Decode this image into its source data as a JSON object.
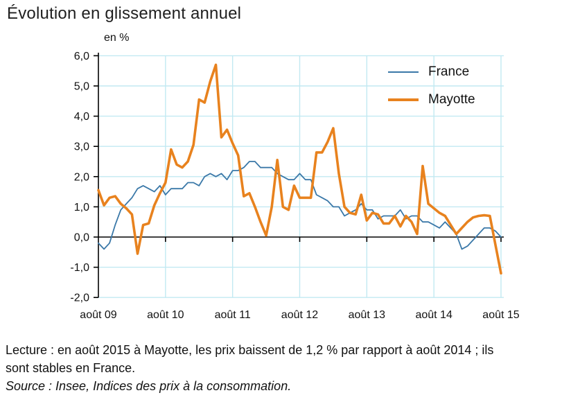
{
  "header": {
    "title": "Évolution en glissement annuel"
  },
  "chart": {
    "unit_label": "en %"
  },
  "legend": {
    "france": {
      "label": "France"
    },
    "mayotte": {
      "label": "Mayotte"
    }
  },
  "colors": {
    "france": "#3A78A8",
    "mayotte": "#E8821E",
    "gridline": "#C2E9F2",
    "axis": "#000000"
  },
  "footer": {
    "lecture_line1": "Lecture : en août 2015 à Mayotte, les prix baissent de 1,2 % par rapport à août 2014 ; ils",
    "lecture_line2": "sont stables en France.",
    "source": "Source : Insee, Indices des prix à la consommation."
  },
  "chart_data": {
    "type": "line",
    "title": "Évolution en glissement annuel",
    "unit": "en %",
    "frequency": "monthly",
    "x_start": "2009-08",
    "x_end": "2015-08",
    "ylim": [
      -2.0,
      6.0
    ],
    "grid": true,
    "legend_position": "top-right",
    "x_tick_labels": [
      "août 09",
      "août 10",
      "août 11",
      "août 12",
      "août 13",
      "août 14",
      "août 15"
    ],
    "y_tick_labels": [
      "6,0",
      "5,0",
      "4,0",
      "3,0",
      "2,0",
      "1,0",
      "0,0",
      "-1,0",
      "-2,0"
    ],
    "y_tick_values": [
      6,
      5,
      4,
      3,
      2,
      1,
      0,
      -1,
      -2
    ],
    "months": [
      "2009-08",
      "2009-09",
      "2009-10",
      "2009-11",
      "2009-12",
      "2010-01",
      "2010-02",
      "2010-03",
      "2010-04",
      "2010-05",
      "2010-06",
      "2010-07",
      "2010-08",
      "2010-09",
      "2010-10",
      "2010-11",
      "2010-12",
      "2011-01",
      "2011-02",
      "2011-03",
      "2011-04",
      "2011-05",
      "2011-06",
      "2011-07",
      "2011-08",
      "2011-09",
      "2011-10",
      "2011-11",
      "2011-12",
      "2012-01",
      "2012-02",
      "2012-03",
      "2012-04",
      "2012-05",
      "2012-06",
      "2012-07",
      "2012-08",
      "2012-09",
      "2012-10",
      "2012-11",
      "2012-12",
      "2013-01",
      "2013-02",
      "2013-03",
      "2013-04",
      "2013-05",
      "2013-06",
      "2013-07",
      "2013-08",
      "2013-09",
      "2013-10",
      "2013-11",
      "2013-12",
      "2014-01",
      "2014-02",
      "2014-03",
      "2014-04",
      "2014-05",
      "2014-06",
      "2014-07",
      "2014-08",
      "2014-09",
      "2014-10",
      "2014-11",
      "2014-12",
      "2015-01",
      "2015-02",
      "2015-03",
      "2015-04",
      "2015-05",
      "2015-06",
      "2015-07",
      "2015-08"
    ],
    "series": [
      {
        "name": "France",
        "color": "#3A78A8",
        "values": [
          -0.2,
          -0.4,
          -0.2,
          0.4,
          0.9,
          1.1,
          1.3,
          1.6,
          1.7,
          1.6,
          1.5,
          1.7,
          1.4,
          1.6,
          1.6,
          1.6,
          1.8,
          1.8,
          1.7,
          2.0,
          2.1,
          2.0,
          2.1,
          1.9,
          2.2,
          2.2,
          2.3,
          2.5,
          2.5,
          2.3,
          2.3,
          2.3,
          2.1,
          2.0,
          1.9,
          1.9,
          2.1,
          1.9,
          1.9,
          1.4,
          1.3,
          1.2,
          1.0,
          1.0,
          0.7,
          0.8,
          0.9,
          1.1,
          0.9,
          0.9,
          0.6,
          0.7,
          0.7,
          0.7,
          0.9,
          0.6,
          0.7,
          0.7,
          0.5,
          0.5,
          0.4,
          0.3,
          0.5,
          0.3,
          0.1,
          -0.4,
          -0.3,
          -0.1,
          0.1,
          0.3,
          0.3,
          0.2,
          0.0
        ]
      },
      {
        "name": "Mayotte",
        "color": "#E8821E",
        "values": [
          1.55,
          1.05,
          1.3,
          1.35,
          1.1,
          0.95,
          0.75,
          -0.55,
          0.4,
          0.45,
          1.05,
          1.45,
          1.8,
          2.9,
          2.4,
          2.3,
          2.5,
          3.05,
          4.55,
          4.45,
          5.15,
          5.7,
          3.3,
          3.55,
          3.1,
          2.7,
          1.35,
          1.45,
          1.0,
          0.5,
          0.05,
          1.0,
          2.55,
          1.0,
          0.9,
          1.7,
          1.3,
          1.3,
          1.3,
          2.8,
          2.8,
          3.15,
          3.6,
          2.1,
          1.0,
          0.8,
          0.75,
          1.4,
          0.55,
          0.8,
          0.75,
          0.45,
          0.45,
          0.7,
          0.35,
          0.7,
          0.5,
          0.1,
          2.35,
          1.1,
          0.95,
          0.8,
          0.7,
          0.4,
          0.1,
          0.3,
          0.5,
          0.65,
          0.7,
          0.72,
          0.7,
          -0.25,
          -1.2
        ]
      }
    ]
  }
}
